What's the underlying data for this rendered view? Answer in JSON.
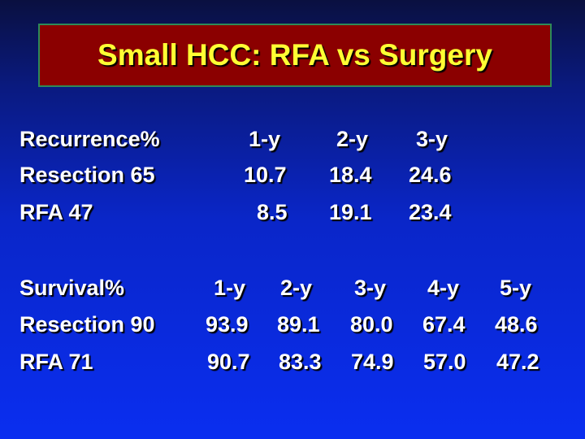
{
  "slide": {
    "title": "Small HCC: RFA vs Surgery"
  },
  "recurrence": {
    "headers": [
      "Recurrence%",
      "1-y",
      "2-y",
      "3-y"
    ],
    "rows": [
      [
        "Resection  65",
        "10.7",
        "18.4",
        "24.6"
      ],
      [
        "RFA  47",
        "8.5",
        "19.1",
        "23.4"
      ]
    ]
  },
  "survival": {
    "headers": [
      "Survival%",
      "1-y",
      "2-y",
      "3-y",
      "4-y",
      "5-y"
    ],
    "rows": [
      [
        "Resection 90",
        "93.9",
        "89.1",
        "80.0",
        "67.4",
        "48.6"
      ],
      [
        "RFA  71",
        "90.7",
        "83.3",
        "74.9",
        "57.0",
        "47.2"
      ]
    ]
  },
  "colors": {
    "title_text": "#ffff33",
    "title_bg": "#8b0000",
    "title_border": "#2e8b57",
    "body_text": "#ffffff"
  }
}
